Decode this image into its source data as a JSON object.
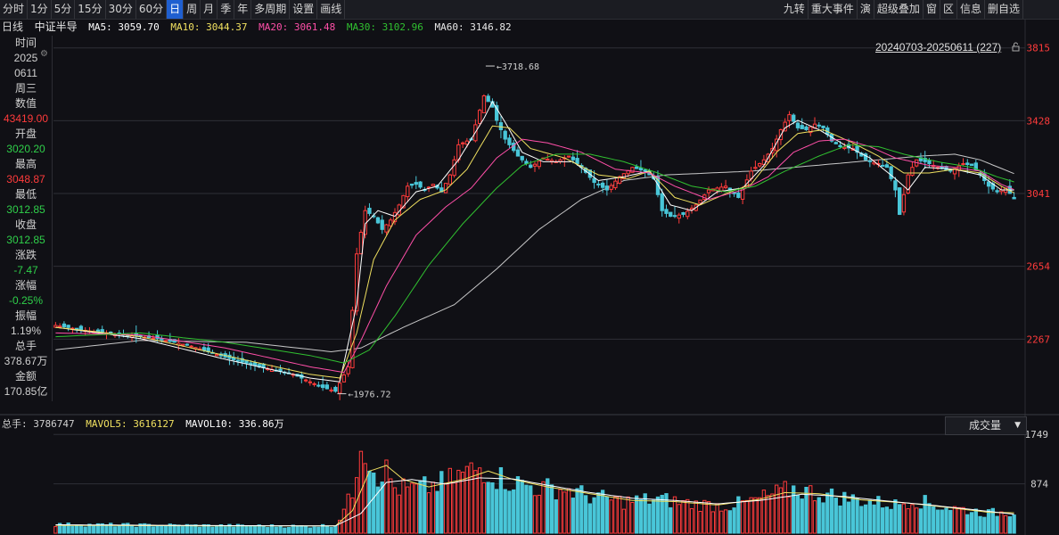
{
  "toolbar": {
    "periods": [
      "分时",
      "1分",
      "5分",
      "15分",
      "30分",
      "60分",
      "日",
      "周",
      "月",
      "季",
      "年",
      "多周期",
      "设置",
      "画线"
    ],
    "active_period": "日",
    "right_items": [
      "九转",
      "重大事件",
      "演",
      "超级叠加",
      "窗",
      "区",
      "信息",
      "删自选"
    ]
  },
  "info": {
    "period_label": "日线",
    "name": "中证半导",
    "ma5": "MA5: 3059.70",
    "ma10": "MA10: 3044.37",
    "ma20": "MA20: 3061.48",
    "ma30": "MA30: 3102.96",
    "ma60": "MA60: 3146.82"
  },
  "sidepanel": [
    {
      "text": "时间",
      "color": "#d0d0d0"
    },
    {
      "text": "2025",
      "color": "#d0d0d0"
    },
    {
      "text": "0611",
      "color": "#d0d0d0"
    },
    {
      "text": "周三",
      "color": "#d0d0d0"
    },
    {
      "text": "数值",
      "color": "#d0d0d0"
    },
    {
      "text": "43419.00",
      "color": "#ff3b3b"
    },
    {
      "text": "开盘",
      "color": "#d0d0d0"
    },
    {
      "text": "3020.20",
      "color": "#2fd04a"
    },
    {
      "text": "最高",
      "color": "#d0d0d0"
    },
    {
      "text": "3048.87",
      "color": "#ff3b3b"
    },
    {
      "text": "最低",
      "color": "#d0d0d0"
    },
    {
      "text": "3012.85",
      "color": "#2fd04a"
    },
    {
      "text": "收盘",
      "color": "#d0d0d0"
    },
    {
      "text": "3012.85",
      "color": "#2fd04a"
    },
    {
      "text": "涨跌",
      "color": "#d0d0d0"
    },
    {
      "text": "-7.47",
      "color": "#2fd04a"
    },
    {
      "text": "涨幅",
      "color": "#d0d0d0"
    },
    {
      "text": "-0.25%",
      "color": "#2fd04a"
    },
    {
      "text": "振幅",
      "color": "#d0d0d0"
    },
    {
      "text": "1.19%",
      "color": "#d0d0d0"
    },
    {
      "text": "总手",
      "color": "#d0d0d0"
    },
    {
      "text": "378.67万",
      "color": "#d0d0d0"
    },
    {
      "text": "金额",
      "color": "#d0d0d0"
    },
    {
      "text": "170.85亿",
      "color": "#d0d0d0"
    }
  ],
  "range_label": "20240703-20250611 (227)",
  "volume_info": {
    "total": "总手: 3786747",
    "mavol5": "MAVOL5: 3616127",
    "mavol10": "MAVOL10: 336.86万"
  },
  "volume_dropdown": "成交量",
  "colors": {
    "up": "#ff3b3b",
    "down": "#49c6d8",
    "ma5": "#ffffff",
    "ma10": "#f0e060",
    "ma20": "#ff4fa8",
    "ma30": "#30c030",
    "ma60": "#e8e8e8",
    "axis_text": "#ff3b3b",
    "grid": "#2e2f36"
  },
  "chart_data": {
    "type": "candlestick",
    "date_range": [
      "20240703",
      "20250611"
    ],
    "count": 227,
    "price_ticks": [
      2267,
      2654,
      3041,
      3428,
      3815
    ],
    "price_ylim": [
      1880,
      3880
    ],
    "annotations": [
      {
        "text": "3718.68",
        "value": 3718.68
      },
      {
        "text": "1976.72",
        "value": 1976.72
      }
    ],
    "last_bar": {
      "open": 3020.2,
      "high": 3048.87,
      "low": 3012.85,
      "close": 3012.85
    },
    "ma_last": {
      "MA5": 3059.7,
      "MA10": 3044.37,
      "MA20": 3061.48,
      "MA30": 3102.96,
      "MA60": 3146.82
    },
    "close_keypoints": [
      [
        0,
        2340
      ],
      [
        8,
        2310
      ],
      [
        16,
        2290
      ],
      [
        24,
        2270
      ],
      [
        32,
        2230
      ],
      [
        40,
        2170
      ],
      [
        48,
        2120
      ],
      [
        56,
        2080
      ],
      [
        63,
        2010
      ],
      [
        66,
        1990
      ],
      [
        69,
        2120
      ],
      [
        70,
        2420
      ],
      [
        71,
        2720
      ],
      [
        73,
        2950
      ],
      [
        75,
        2920
      ],
      [
        77,
        2850
      ],
      [
        79,
        2900
      ],
      [
        81,
        2980
      ],
      [
        83,
        3080
      ],
      [
        85,
        3090
      ],
      [
        87,
        3060
      ],
      [
        89,
        3090
      ],
      [
        91,
        3050
      ],
      [
        93,
        3140
      ],
      [
        95,
        3300
      ],
      [
        98,
        3330
      ],
      [
        101,
        3560
      ],
      [
        103,
        3500
      ],
      [
        104,
        3430
      ],
      [
        106,
        3330
      ],
      [
        109,
        3240
      ],
      [
        112,
        3180
      ],
      [
        115,
        3230
      ],
      [
        118,
        3210
      ],
      [
        121,
        3240
      ],
      [
        124,
        3180
      ],
      [
        127,
        3100
      ],
      [
        130,
        3060
      ],
      [
        133,
        3130
      ],
      [
        136,
        3180
      ],
      [
        139,
        3160
      ],
      [
        141,
        3120
      ],
      [
        143,
        2950
      ],
      [
        145,
        2920
      ],
      [
        148,
        2930
      ],
      [
        151,
        2980
      ],
      [
        154,
        3060
      ],
      [
        158,
        3080
      ],
      [
        161,
        3020
      ],
      [
        164,
        3160
      ],
      [
        167,
        3220
      ],
      [
        169,
        3280
      ],
      [
        171,
        3380
      ],
      [
        173,
        3460
      ],
      [
        175,
        3390
      ],
      [
        177,
        3380
      ],
      [
        179,
        3410
      ],
      [
        181,
        3390
      ],
      [
        183,
        3320
      ],
      [
        185,
        3290
      ],
      [
        188,
        3280
      ],
      [
        191,
        3220
      ],
      [
        194,
        3200
      ],
      [
        196,
        3180
      ],
      [
        198,
        3060
      ],
      [
        199,
        2930
      ],
      [
        201,
        3140
      ],
      [
        203,
        3220
      ],
      [
        205,
        3210
      ],
      [
        208,
        3180
      ],
      [
        211,
        3160
      ],
      [
        214,
        3200
      ],
      [
        216,
        3190
      ],
      [
        218,
        3140
      ],
      [
        220,
        3080
      ],
      [
        222,
        3050
      ],
      [
        224,
        3070
      ],
      [
        226,
        3012.85
      ]
    ],
    "ma_keypoints": {
      "MA5": [
        [
          0,
          2330
        ],
        [
          20,
          2270
        ],
        [
          40,
          2160
        ],
        [
          60,
          2060
        ],
        [
          67,
          2040
        ],
        [
          71,
          2450
        ],
        [
          73,
          2880
        ],
        [
          76,
          2950
        ],
        [
          80,
          2920
        ],
        [
          85,
          3050
        ],
        [
          90,
          3080
        ],
        [
          95,
          3220
        ],
        [
          101,
          3440
        ],
        [
          103,
          3530
        ],
        [
          106,
          3420
        ],
        [
          110,
          3260
        ],
        [
          115,
          3210
        ],
        [
          122,
          3210
        ],
        [
          128,
          3110
        ],
        [
          134,
          3130
        ],
        [
          140,
          3160
        ],
        [
          145,
          2980
        ],
        [
          150,
          2950
        ],
        [
          156,
          3050
        ],
        [
          162,
          3070
        ],
        [
          167,
          3190
        ],
        [
          172,
          3390
        ],
        [
          175,
          3430
        ],
        [
          180,
          3380
        ],
        [
          186,
          3300
        ],
        [
          192,
          3230
        ],
        [
          198,
          3120
        ],
        [
          201,
          3060
        ],
        [
          205,
          3180
        ],
        [
          212,
          3170
        ],
        [
          218,
          3140
        ],
        [
          223,
          3060
        ],
        [
          226,
          3059.7
        ]
      ],
      "MA10": [
        [
          0,
          2330
        ],
        [
          20,
          2280
        ],
        [
          40,
          2180
        ],
        [
          60,
          2080
        ],
        [
          67,
          2060
        ],
        [
          71,
          2300
        ],
        [
          75,
          2690
        ],
        [
          80,
          2900
        ],
        [
          86,
          3010
        ],
        [
          92,
          3060
        ],
        [
          97,
          3170
        ],
        [
          103,
          3400
        ],
        [
          107,
          3390
        ],
        [
          112,
          3280
        ],
        [
          120,
          3230
        ],
        [
          128,
          3140
        ],
        [
          135,
          3120
        ],
        [
          140,
          3160
        ],
        [
          146,
          3020
        ],
        [
          152,
          2980
        ],
        [
          158,
          3040
        ],
        [
          164,
          3090
        ],
        [
          170,
          3260
        ],
        [
          175,
          3360
        ],
        [
          181,
          3380
        ],
        [
          188,
          3310
        ],
        [
          194,
          3240
        ],
        [
          200,
          3150
        ],
        [
          206,
          3150
        ],
        [
          212,
          3170
        ],
        [
          218,
          3150
        ],
        [
          223,
          3080
        ],
        [
          226,
          3044.37
        ]
      ],
      "MA20": [
        [
          0,
          2300
        ],
        [
          20,
          2290
        ],
        [
          40,
          2220
        ],
        [
          60,
          2120
        ],
        [
          68,
          2090
        ],
        [
          72,
          2260
        ],
        [
          78,
          2550
        ],
        [
          85,
          2820
        ],
        [
          92,
          2970
        ],
        [
          98,
          3070
        ],
        [
          104,
          3230
        ],
        [
          110,
          3330
        ],
        [
          116,
          3310
        ],
        [
          124,
          3260
        ],
        [
          132,
          3170
        ],
        [
          140,
          3150
        ],
        [
          146,
          3080
        ],
        [
          154,
          3010
        ],
        [
          162,
          3060
        ],
        [
          168,
          3130
        ],
        [
          174,
          3260
        ],
        [
          180,
          3320
        ],
        [
          186,
          3330
        ],
        [
          192,
          3290
        ],
        [
          198,
          3230
        ],
        [
          206,
          3190
        ],
        [
          212,
          3180
        ],
        [
          218,
          3160
        ],
        [
          223,
          3090
        ],
        [
          226,
          3061.48
        ]
      ],
      "MA30": [
        [
          0,
          2280
        ],
        [
          20,
          2300
        ],
        [
          40,
          2250
        ],
        [
          60,
          2180
        ],
        [
          68,
          2140
        ],
        [
          74,
          2210
        ],
        [
          80,
          2390
        ],
        [
          88,
          2660
        ],
        [
          96,
          2880
        ],
        [
          104,
          3070
        ],
        [
          110,
          3190
        ],
        [
          118,
          3250
        ],
        [
          126,
          3250
        ],
        [
          134,
          3210
        ],
        [
          142,
          3150
        ],
        [
          150,
          3080
        ],
        [
          158,
          3050
        ],
        [
          165,
          3080
        ],
        [
          172,
          3160
        ],
        [
          180,
          3240
        ],
        [
          187,
          3300
        ],
        [
          194,
          3290
        ],
        [
          200,
          3250
        ],
        [
          208,
          3210
        ],
        [
          216,
          3180
        ],
        [
          222,
          3130
        ],
        [
          226,
          3102.96
        ]
      ],
      "MA60": [
        [
          0,
          2210
        ],
        [
          20,
          2260
        ],
        [
          45,
          2250
        ],
        [
          65,
          2200
        ],
        [
          72,
          2220
        ],
        [
          82,
          2330
        ],
        [
          94,
          2450
        ],
        [
          104,
          2640
        ],
        [
          114,
          2850
        ],
        [
          124,
          3010
        ],
        [
          134,
          3110
        ],
        [
          144,
          3140
        ],
        [
          154,
          3150
        ],
        [
          164,
          3160
        ],
        [
          174,
          3180
        ],
        [
          184,
          3200
        ],
        [
          194,
          3220
        ],
        [
          204,
          3240
        ],
        [
          212,
          3250
        ],
        [
          218,
          3220
        ],
        [
          226,
          3146.82
        ]
      ]
    },
    "volume_ticks": [
      874,
      1749
    ],
    "volume_ylim": [
      0,
      1800
    ],
    "volume_unit": "万手",
    "volume_keypoints": [
      [
        0,
        150
      ],
      [
        20,
        140
      ],
      [
        40,
        130
      ],
      [
        60,
        120
      ],
      [
        66,
        140
      ],
      [
        70,
        700
      ],
      [
        72,
        1749
      ],
      [
        74,
        1300
      ],
      [
        76,
        1050
      ],
      [
        78,
        1100
      ],
      [
        80,
        800
      ],
      [
        84,
        780
      ],
      [
        88,
        820
      ],
      [
        92,
        900
      ],
      [
        96,
        1050
      ],
      [
        100,
        1150
      ],
      [
        102,
        1120
      ],
      [
        104,
        1000
      ],
      [
        108,
        900
      ],
      [
        114,
        800
      ],
      [
        120,
        780
      ],
      [
        126,
        650
      ],
      [
        134,
        560
      ],
      [
        142,
        600
      ],
      [
        150,
        520
      ],
      [
        158,
        480
      ],
      [
        164,
        560
      ],
      [
        170,
        700
      ],
      [
        174,
        780
      ],
      [
        180,
        700
      ],
      [
        186,
        620
      ],
      [
        192,
        560
      ],
      [
        198,
        500
      ],
      [
        202,
        600
      ],
      [
        208,
        480
      ],
      [
        214,
        420
      ],
      [
        220,
        350
      ],
      [
        226,
        378.67
      ]
    ],
    "mavol_keypoints": {
      "MAVOL5": [
        [
          0,
          140
        ],
        [
          40,
          130
        ],
        [
          66,
          130
        ],
        [
          70,
          400
        ],
        [
          74,
          1100
        ],
        [
          78,
          1200
        ],
        [
          82,
          950
        ],
        [
          88,
          820
        ],
        [
          96,
          950
        ],
        [
          102,
          1100
        ],
        [
          108,
          950
        ],
        [
          116,
          820
        ],
        [
          126,
          700
        ],
        [
          136,
          580
        ],
        [
          146,
          560
        ],
        [
          156,
          500
        ],
        [
          166,
          600
        ],
        [
          172,
          720
        ],
        [
          180,
          700
        ],
        [
          190,
          590
        ],
        [
          200,
          540
        ],
        [
          210,
          460
        ],
        [
          220,
          370
        ],
        [
          226,
          361.6
        ]
      ],
      "MAVOL10": [
        [
          0,
          150
        ],
        [
          40,
          135
        ],
        [
          66,
          130
        ],
        [
          72,
          350
        ],
        [
          78,
          900
        ],
        [
          84,
          950
        ],
        [
          92,
          870
        ],
        [
          100,
          980
        ],
        [
          108,
          960
        ],
        [
          116,
          850
        ],
        [
          126,
          720
        ],
        [
          136,
          620
        ],
        [
          146,
          580
        ],
        [
          156,
          520
        ],
        [
          166,
          580
        ],
        [
          176,
          690
        ],
        [
          186,
          650
        ],
        [
          196,
          570
        ],
        [
          206,
          500
        ],
        [
          216,
          420
        ],
        [
          226,
          336.86
        ]
      ]
    }
  }
}
